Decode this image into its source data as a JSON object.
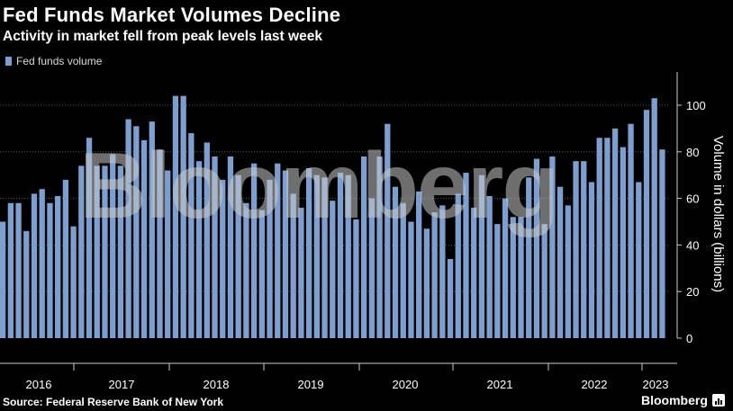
{
  "title": "Fed Funds Market Volumes Decline",
  "subtitle": "Activity in market fell from peak levels last week",
  "legend_label": "Fed funds volume",
  "source": "Source: Federal Reserve Bank of New York",
  "brand": "Bloomberg",
  "watermark": "Bloomberg",
  "colors": {
    "bar": "#7d9fd0",
    "background": "#000000",
    "grid": "#5a5a5a",
    "text": "#ffffff"
  },
  "chart_data": {
    "type": "bar",
    "title": "Fed Funds Market Volumes Decline",
    "ylabel": "Volume in dollars (billions)",
    "ylim": [
      0,
      110
    ],
    "yticks": [
      0,
      20,
      40,
      60,
      80,
      100
    ],
    "years": [
      "2016",
      "2017",
      "2018",
      "2019",
      "2020",
      "2021",
      "2022",
      "2023"
    ],
    "series": [
      {
        "name": "Fed funds volume",
        "values": [
          50,
          58,
          58,
          46,
          62,
          64,
          58,
          61,
          68,
          48,
          74,
          86,
          74,
          74,
          79,
          74,
          94,
          91,
          85,
          93,
          81,
          72,
          104,
          104,
          88,
          76,
          84,
          78,
          68,
          78,
          70,
          58,
          75,
          55,
          68,
          75,
          72,
          62,
          56,
          73,
          70,
          69,
          59,
          71,
          70,
          51,
          78,
          60,
          78,
          92,
          65,
          58,
          50,
          63,
          47,
          54,
          57,
          34,
          62,
          71,
          56,
          70,
          61,
          49,
          60,
          52,
          52,
          69,
          77,
          49,
          78,
          65,
          57,
          76,
          76,
          67,
          86,
          86,
          90,
          82,
          92,
          67,
          98,
          103,
          81
        ]
      }
    ]
  }
}
